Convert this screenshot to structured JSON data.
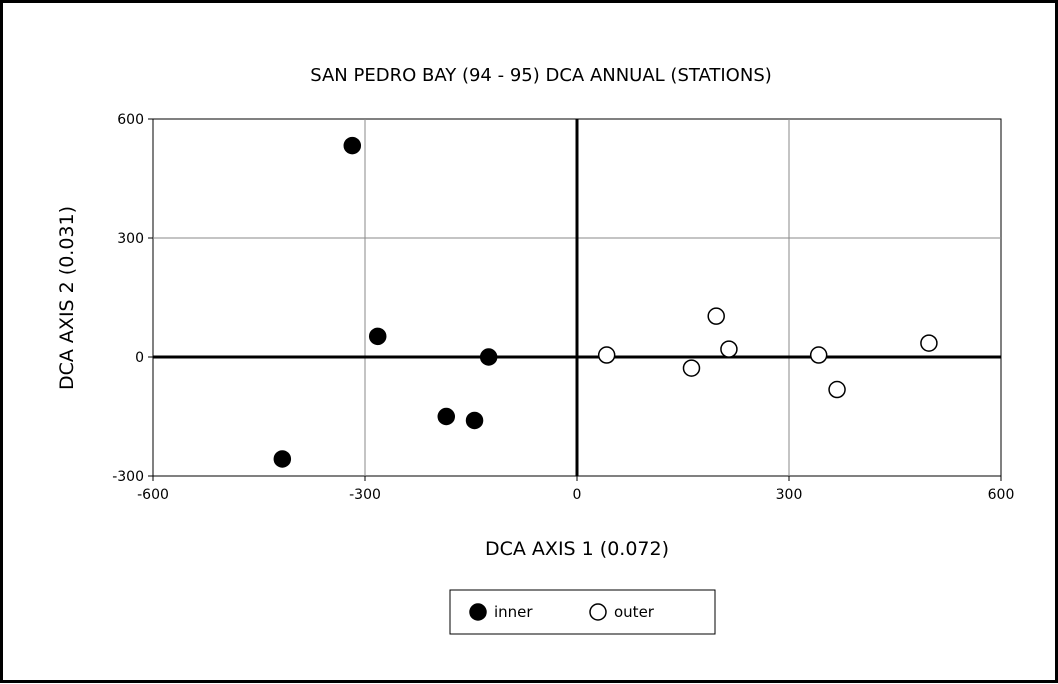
{
  "chart_data": {
    "type": "scatter",
    "title": "SAN PEDRO BAY (94 - 95) DCA ANNUAL (STATIONS)",
    "xlabel": "DCA AXIS 1 (0.072)",
    "ylabel": "DCA AXIS 2 (0.031)",
    "xlim": [
      -600,
      600
    ],
    "ylim": [
      -300,
      600
    ],
    "xticks": [
      -600,
      -300,
      0,
      300,
      600
    ],
    "yticks": [
      -300,
      0,
      300,
      600
    ],
    "xtick_labels": [
      "-600",
      "-300",
      "0",
      "300",
      "600"
    ],
    "ytick_labels": [
      "-300",
      "0",
      "300",
      "600"
    ],
    "grid": true,
    "legend_position": "bottom-center",
    "series": [
      {
        "name": "inner",
        "marker": "filled-circle",
        "color": "#000000",
        "points": [
          {
            "x": -318,
            "y": 533
          },
          {
            "x": -282,
            "y": 52
          },
          {
            "x": -125,
            "y": 0
          },
          {
            "x": -185,
            "y": -150
          },
          {
            "x": -145,
            "y": -160
          },
          {
            "x": -417,
            "y": -257
          }
        ]
      },
      {
        "name": "outer",
        "marker": "open-circle",
        "color": "#000000",
        "points": [
          {
            "x": 42,
            "y": 5
          },
          {
            "x": 162,
            "y": -28
          },
          {
            "x": 197,
            "y": 103
          },
          {
            "x": 215,
            "y": 20
          },
          {
            "x": 342,
            "y": 5
          },
          {
            "x": 368,
            "y": -82
          },
          {
            "x": 498,
            "y": 35
          }
        ]
      }
    ]
  }
}
